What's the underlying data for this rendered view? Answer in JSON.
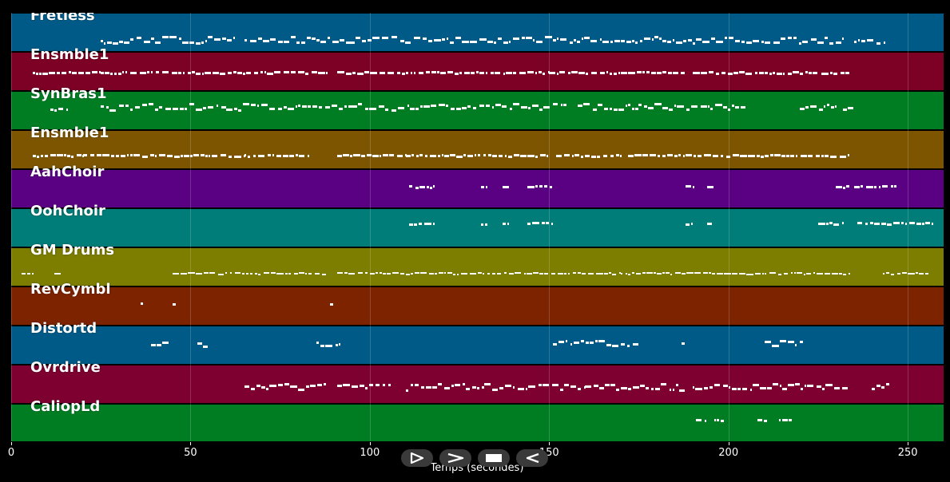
{
  "tracks": [
    {
      "name": "Fretless",
      "color": "#005a87"
    },
    {
      "name": "Ensmble1",
      "color": "#7d0025"
    },
    {
      "name": "SynBras1",
      "color": "#007d23"
    },
    {
      "name": "Ensmble1",
      "color": "#7d5500"
    },
    {
      "name": "AahChoir",
      "color": "#5a0082"
    },
    {
      "name": "OohChoir",
      "color": "#007d78"
    },
    {
      "name": "GM Drums",
      "color": "#7d7d00"
    },
    {
      "name": "RevCymbl",
      "color": "#7d2300"
    },
    {
      "name": "Distortd",
      "color": "#005a87"
    },
    {
      "name": "Ovrdrive",
      "color": "#7d0030"
    },
    {
      "name": "CaliopLd",
      "color": "#007d23"
    }
  ],
  "x_axis": {
    "label": "Temps (secondes)",
    "min": 0,
    "max": 260,
    "ticks": [
      0,
      50,
      100,
      150,
      200,
      250
    ]
  },
  "transport": [
    {
      "name": "play-icon",
      "label": "play"
    },
    {
      "name": "forward-icon",
      "label": "forward"
    },
    {
      "name": "stop-icon",
      "label": "stop"
    },
    {
      "name": "rewind-icon",
      "label": "rewind"
    }
  ],
  "note_segments": [
    [
      [
        25,
        30
      ],
      [
        30,
        40
      ],
      [
        40,
        63
      ],
      [
        65,
        85
      ],
      [
        85,
        95
      ],
      [
        95,
        120
      ],
      [
        120,
        140
      ],
      [
        140,
        170
      ],
      [
        170,
        190
      ],
      [
        190,
        210
      ],
      [
        210,
        232
      ],
      [
        235,
        244
      ]
    ],
    [
      [
        6,
        25
      ],
      [
        25,
        45
      ],
      [
        45,
        63
      ],
      [
        63,
        82
      ],
      [
        82,
        88
      ],
      [
        91,
        105
      ],
      [
        105,
        128
      ],
      [
        128,
        150
      ],
      [
        150,
        170
      ],
      [
        170,
        180
      ],
      [
        180,
        188
      ],
      [
        190,
        210
      ],
      [
        210,
        225
      ],
      [
        226,
        234
      ]
    ],
    [
      [
        11,
        16
      ],
      [
        25,
        40
      ],
      [
        40,
        60
      ],
      [
        60,
        80
      ],
      [
        80,
        95
      ],
      [
        95,
        115
      ],
      [
        115,
        135
      ],
      [
        135,
        155
      ],
      [
        158,
        175
      ],
      [
        175,
        195
      ],
      [
        195,
        205
      ],
      [
        220,
        230
      ],
      [
        232,
        235
      ]
    ],
    [
      [
        6,
        20
      ],
      [
        20,
        40
      ],
      [
        40,
        65
      ],
      [
        65,
        83
      ],
      [
        91,
        110
      ],
      [
        110,
        130
      ],
      [
        130,
        150
      ],
      [
        152,
        170
      ],
      [
        172,
        188
      ],
      [
        188,
        210
      ],
      [
        210,
        234
      ]
    ],
    [
      [
        111,
        118
      ],
      [
        131,
        133
      ],
      [
        137,
        139
      ],
      [
        144,
        151
      ],
      [
        188,
        190
      ],
      [
        194,
        196
      ],
      [
        230,
        234
      ],
      [
        235,
        247
      ]
    ],
    [
      [
        111,
        118
      ],
      [
        131,
        133
      ],
      [
        137,
        139
      ],
      [
        144,
        151
      ],
      [
        188,
        190
      ],
      [
        194,
        196
      ],
      [
        225,
        232
      ],
      [
        236,
        257
      ]
    ],
    [
      [
        3,
        6
      ],
      [
        12,
        14
      ],
      [
        45,
        88
      ],
      [
        91,
        130
      ],
      [
        130,
        170
      ],
      [
        170,
        210
      ],
      [
        210,
        234
      ],
      [
        243,
        256
      ]
    ],
    [
      [
        36,
        37
      ],
      [
        45,
        46
      ],
      [
        89,
        90
      ]
    ],
    [
      [
        39,
        44
      ],
      [
        52,
        55
      ],
      [
        85,
        92
      ],
      [
        151,
        155
      ],
      [
        156,
        175
      ],
      [
        187,
        188
      ],
      [
        210,
        221
      ]
    ],
    [
      [
        65,
        88
      ],
      [
        91,
        106
      ],
      [
        110,
        132
      ],
      [
        132,
        160
      ],
      [
        160,
        188
      ],
      [
        190,
        215
      ],
      [
        215,
        234
      ],
      [
        240,
        245
      ]
    ],
    [
      [
        191,
        194
      ],
      [
        196,
        199
      ],
      [
        208,
        211
      ],
      [
        214,
        218
      ]
    ]
  ]
}
